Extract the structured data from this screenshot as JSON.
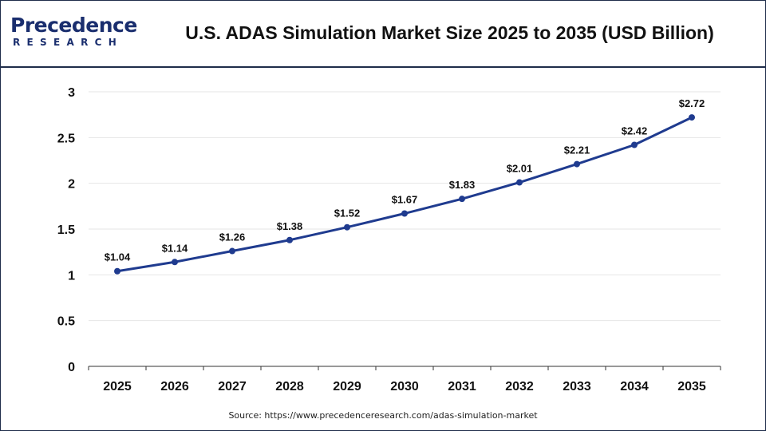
{
  "header": {
    "logo_main": "Precedence",
    "logo_sub": "RESEARCH",
    "title": "U.S. ADAS Simulation Market Size 2025 to 2035 (USD Billion)"
  },
  "footer": {
    "source": "Source: https://www.precedenceresearch.com/adas-simulation-market"
  },
  "colors": {
    "line": "#1f3b8f",
    "brand": "#1a2e6e",
    "grid": "#e6e6e6"
  },
  "chart_data": {
    "type": "line",
    "title": "U.S. ADAS Simulation Market Size 2025 to 2035 (USD Billion)",
    "xlabel": "",
    "ylabel": "",
    "x": [
      "2025",
      "2026",
      "2027",
      "2028",
      "2029",
      "2030",
      "2031",
      "2032",
      "2033",
      "2034",
      "2035"
    ],
    "series": [
      {
        "values": [
          1.04,
          1.14,
          1.26,
          1.38,
          1.52,
          1.67,
          1.83,
          2.01,
          2.21,
          2.42,
          2.72
        ],
        "labels": [
          "$1.04",
          "$1.14",
          "$1.26",
          "$1.38",
          "$1.52",
          "$1.67",
          "$1.83",
          "$2.01",
          "$2.21",
          "$2.42",
          "$2.72"
        ]
      }
    ],
    "yticks": [
      "0",
      "0.5",
      "1",
      "1.5",
      "2",
      "2.5",
      "3"
    ],
    "ylim": [
      0,
      3
    ],
    "grid": true,
    "legend": "none"
  }
}
